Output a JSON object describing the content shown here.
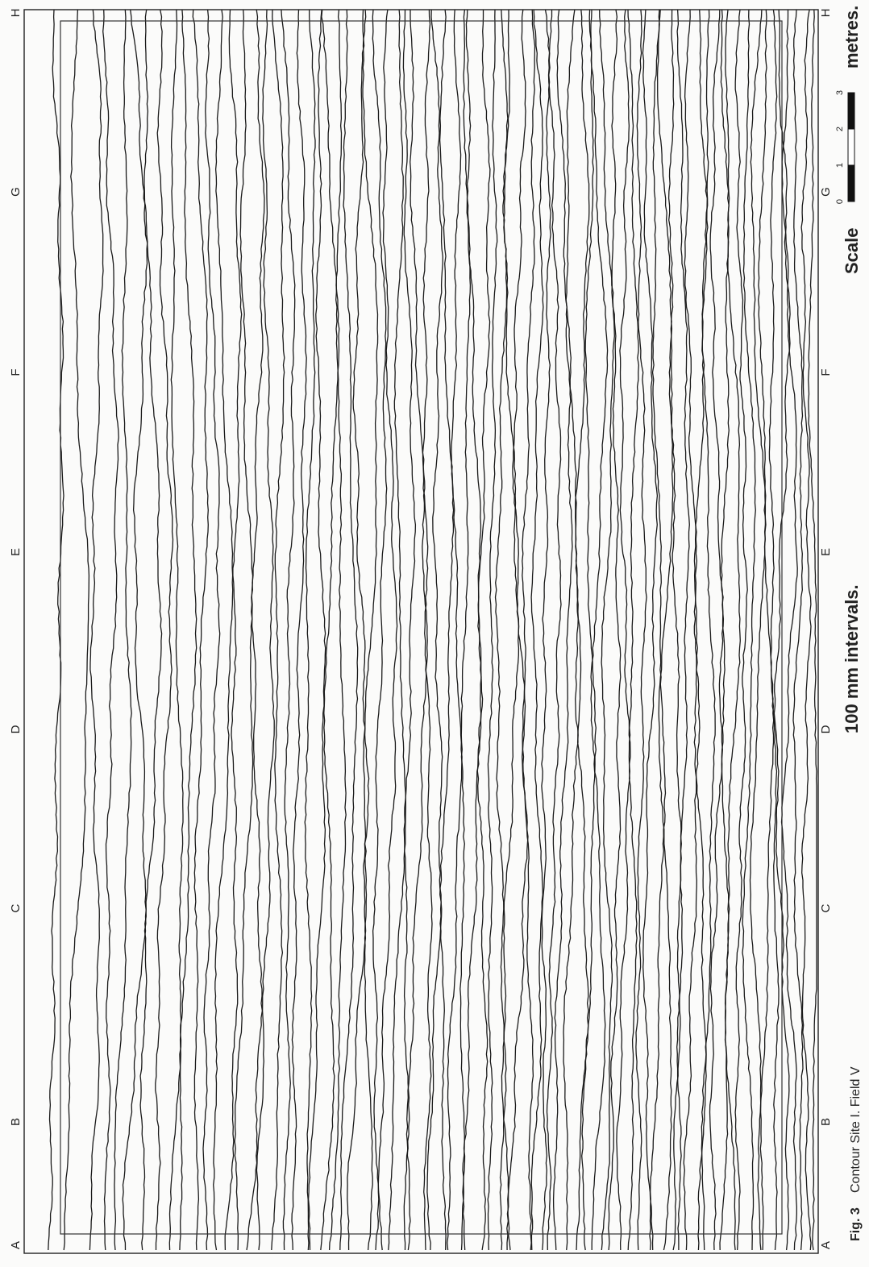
{
  "figure": {
    "number": "Fig. 3",
    "caption": "Contour Site I. Field V",
    "interval": "100 mm intervals.",
    "scale": {
      "label": "Scale",
      "ticks": [
        "0",
        "1",
        "2",
        "3"
      ],
      "unit": "metres."
    }
  },
  "grid": {
    "left": [
      "A",
      "B",
      "C",
      "D",
      "E",
      "F",
      "G",
      "H"
    ],
    "right": [
      "A",
      "B",
      "C",
      "D",
      "E",
      "F",
      "G",
      "H"
    ]
  }
}
